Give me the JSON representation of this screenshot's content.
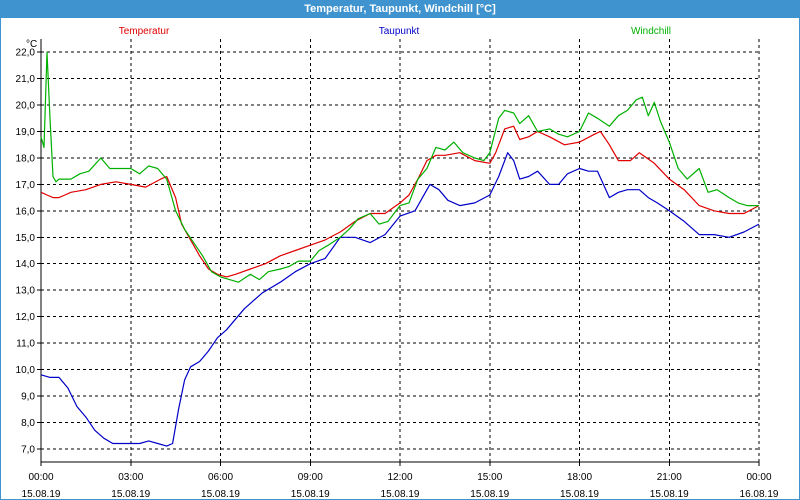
{
  "window": {
    "title": "Temperatur, Taupunkt, Windchill [°C]"
  },
  "colors": {
    "title_bar": "#3f93cf",
    "grid": "#000000",
    "axis": "#000000"
  },
  "chart_data": {
    "type": "line",
    "title": "Temperatur, Taupunkt, Windchill [°C]",
    "ylabel": "°C",
    "xlabel": "",
    "ylim": [
      6.5,
      22.5
    ],
    "y_ticks": [
      7.0,
      8.0,
      9.0,
      10.0,
      11.0,
      12.0,
      13.0,
      14.0,
      15.0,
      16.0,
      17.0,
      18.0,
      19.0,
      20.0,
      21.0,
      22.0
    ],
    "y_tick_labels": [
      "7,0",
      "8,0",
      "9,0",
      "10,0",
      "11,0",
      "12,0",
      "13,0",
      "14,0",
      "15,0",
      "16,0",
      "17,0",
      "18,0",
      "19,0",
      "20,0",
      "21,0",
      "22,0"
    ],
    "x_unit": "hours since 15.08.19 00:00",
    "xlim": [
      0,
      24
    ],
    "x_ticks": [
      0,
      3,
      6,
      9,
      12,
      15,
      18,
      21,
      24
    ],
    "x_tick_labels": [
      {
        "time": "00:00",
        "date": "15.08.19"
      },
      {
        "time": "03:00",
        "date": "15.08.19"
      },
      {
        "time": "06:00",
        "date": "15.08.19"
      },
      {
        "time": "09:00",
        "date": "15.08.19"
      },
      {
        "time": "12:00",
        "date": "15.08.19"
      },
      {
        "time": "15:00",
        "date": "15.08.19"
      },
      {
        "time": "18:00",
        "date": "15.08.19"
      },
      {
        "time": "21:00",
        "date": "15.08.19"
      },
      {
        "time": "00:00",
        "date": "16.08.19"
      }
    ],
    "grid": true,
    "legend_position": "top",
    "series": [
      {
        "name": "Temperatur",
        "color": "#e00000",
        "x": [
          0,
          0.2,
          0.4,
          0.6,
          0.8,
          1.0,
          1.5,
          2.0,
          2.5,
          3.0,
          3.5,
          4.0,
          4.2,
          4.5,
          4.7,
          5.0,
          5.3,
          5.6,
          5.9,
          6.2,
          6.5,
          7.0,
          7.5,
          8.0,
          8.5,
          9.0,
          9.5,
          10.0,
          10.5,
          11.0,
          11.5,
          12.0,
          12.3,
          12.6,
          12.9,
          13.2,
          13.5,
          14.0,
          14.5,
          15.0,
          15.2,
          15.5,
          15.8,
          16.0,
          16.3,
          16.6,
          17.0,
          17.5,
          18.0,
          18.5,
          18.7,
          19.0,
          19.3,
          19.7,
          20.0,
          20.5,
          21.0,
          21.5,
          22.0,
          22.5,
          23.0,
          23.5,
          24.0
        ],
        "values": [
          16.7,
          16.6,
          16.5,
          16.5,
          16.6,
          16.7,
          16.8,
          17.0,
          17.1,
          17.0,
          16.9,
          17.2,
          17.3,
          16.5,
          15.5,
          14.9,
          14.3,
          13.8,
          13.6,
          13.5,
          13.6,
          13.8,
          14.0,
          14.3,
          14.5,
          14.7,
          14.9,
          15.2,
          15.6,
          15.9,
          15.9,
          16.3,
          16.6,
          17.2,
          17.9,
          18.1,
          18.1,
          18.2,
          17.9,
          17.8,
          18.2,
          19.1,
          19.2,
          18.7,
          18.8,
          19.0,
          18.8,
          18.5,
          18.6,
          18.9,
          19.0,
          18.5,
          17.9,
          17.9,
          18.2,
          17.8,
          17.2,
          16.8,
          16.2,
          16.0,
          15.9,
          15.9,
          16.2
        ]
      },
      {
        "name": "Taupunkt",
        "color": "#0000c8",
        "x": [
          0,
          0.3,
          0.6,
          0.9,
          1.2,
          1.5,
          1.8,
          2.1,
          2.4,
          2.7,
          3.0,
          3.3,
          3.6,
          3.9,
          4.2,
          4.4,
          4.6,
          4.8,
          5.0,
          5.3,
          5.6,
          5.9,
          6.2,
          6.5,
          6.8,
          7.1,
          7.4,
          7.7,
          8.0,
          8.5,
          9.0,
          9.5,
          10.0,
          10.5,
          11.0,
          11.5,
          12.0,
          12.5,
          13.0,
          13.3,
          13.6,
          14.0,
          14.5,
          15.0,
          15.3,
          15.6,
          15.8,
          16.0,
          16.3,
          16.6,
          17.0,
          17.3,
          17.6,
          18.0,
          18.3,
          18.6,
          19.0,
          19.3,
          19.6,
          20.0,
          20.3,
          20.6,
          21.0,
          21.5,
          22.0,
          22.5,
          23.0,
          23.5,
          24.0
        ],
        "values": [
          9.8,
          9.7,
          9.7,
          9.3,
          8.6,
          8.2,
          7.7,
          7.4,
          7.2,
          7.2,
          7.2,
          7.2,
          7.3,
          7.2,
          7.1,
          7.2,
          8.5,
          9.6,
          10.1,
          10.3,
          10.7,
          11.2,
          11.5,
          11.9,
          12.3,
          12.6,
          12.9,
          13.1,
          13.3,
          13.7,
          14.0,
          14.2,
          15.0,
          15.0,
          14.8,
          15.1,
          15.8,
          16.0,
          17.0,
          16.8,
          16.4,
          16.2,
          16.3,
          16.6,
          17.3,
          18.2,
          17.9,
          17.2,
          17.3,
          17.5,
          17.0,
          17.0,
          17.4,
          17.6,
          17.5,
          17.5,
          16.5,
          16.7,
          16.8,
          16.8,
          16.5,
          16.3,
          16.0,
          15.6,
          15.1,
          15.1,
          15.0,
          15.2,
          15.5
        ]
      },
      {
        "name": "Windchill",
        "color": "#00b000",
        "x": [
          0,
          0.1,
          0.2,
          0.3,
          0.4,
          0.5,
          0.6,
          0.8,
          1.0,
          1.3,
          1.6,
          2.0,
          2.3,
          2.6,
          3.0,
          3.3,
          3.6,
          3.9,
          4.2,
          4.5,
          4.8,
          5.1,
          5.4,
          5.7,
          6.0,
          6.3,
          6.6,
          7.0,
          7.3,
          7.6,
          8.0,
          8.3,
          8.6,
          9.0,
          9.3,
          9.6,
          10.0,
          10.3,
          10.6,
          11.0,
          11.3,
          11.6,
          12.0,
          12.3,
          12.6,
          12.9,
          13.2,
          13.5,
          13.8,
          14.1,
          14.5,
          14.8,
          15.0,
          15.3,
          15.5,
          15.8,
          16.0,
          16.3,
          16.6,
          17.0,
          17.3,
          17.6,
          18.0,
          18.3,
          18.6,
          19.0,
          19.3,
          19.6,
          19.9,
          20.1,
          20.3,
          20.5,
          20.7,
          21.0,
          21.3,
          21.6,
          22.0,
          22.3,
          22.6,
          23.0,
          23.3,
          23.6,
          24.0
        ],
        "values": [
          18.8,
          18.4,
          22.0,
          19.5,
          17.3,
          17.1,
          17.2,
          17.2,
          17.2,
          17.4,
          17.5,
          18.0,
          17.6,
          17.6,
          17.6,
          17.4,
          17.7,
          17.6,
          17.2,
          16.0,
          15.3,
          14.8,
          14.3,
          13.7,
          13.5,
          13.4,
          13.3,
          13.6,
          13.4,
          13.7,
          13.8,
          13.9,
          14.1,
          14.1,
          14.5,
          14.7,
          15.0,
          15.3,
          15.7,
          15.9,
          15.5,
          15.6,
          16.2,
          16.3,
          17.2,
          17.6,
          18.4,
          18.3,
          18.6,
          18.2,
          18.0,
          17.9,
          18.2,
          19.5,
          19.8,
          19.7,
          19.3,
          19.6,
          19.0,
          19.1,
          18.9,
          18.8,
          19.0,
          19.7,
          19.5,
          19.2,
          19.6,
          19.8,
          20.2,
          20.3,
          19.6,
          20.1,
          19.4,
          18.6,
          17.6,
          17.2,
          17.6,
          16.7,
          16.8,
          16.5,
          16.3,
          16.2,
          16.2
        ]
      }
    ]
  }
}
